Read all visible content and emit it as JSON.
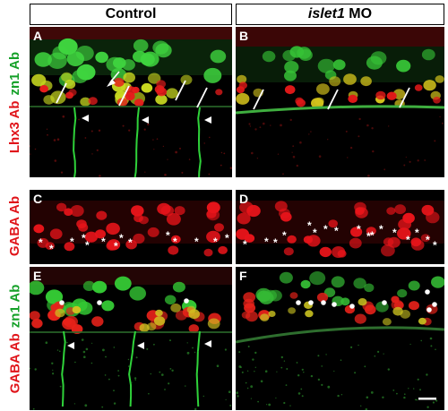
{
  "columns": {
    "control": "Control",
    "morphant_gene": "islet1",
    "morphant_suffix": "MO"
  },
  "rows": [
    {
      "label_red": "Lhx3 Ab",
      "label_green": "zn1 Ab"
    },
    {
      "label_red": "GABA Ab",
      "label_green": ""
    },
    {
      "label_red": "GABA Ab",
      "label_green": "zn1 Ab"
    }
  ],
  "panels": {
    "A": "A",
    "B": "B",
    "C": "C",
    "D": "D",
    "E": "E",
    "F": "F"
  },
  "colors": {
    "red_channel": "#e0141a",
    "green_channel": "#14a028",
    "background": "#000000"
  },
  "annotations": {
    "star": "*",
    "arrowhead": "▲"
  }
}
